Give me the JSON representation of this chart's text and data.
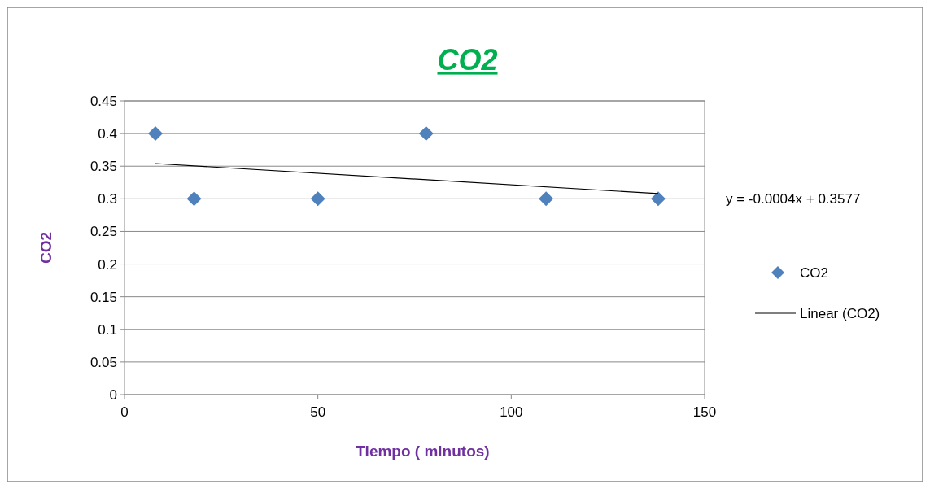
{
  "chart_data": {
    "type": "scatter",
    "title": "CO2",
    "xlabel": "Tiempo ( minutos)",
    "ylabel": "CO2",
    "xlim": [
      0,
      150
    ],
    "xticks": [
      0,
      50,
      100,
      150
    ],
    "ylim": [
      0,
      0.45
    ],
    "yticks": [
      0,
      0.05,
      0.1,
      0.15,
      0.2,
      0.25,
      0.3,
      0.35,
      0.4,
      0.45
    ],
    "grid": "y",
    "legend": "right",
    "annotations": [
      "y = -0.0004x + 0.3577"
    ],
    "series": [
      {
        "name": "CO2",
        "marker": "diamond",
        "color": "#4f81bd",
        "x": [
          8,
          18,
          50,
          78,
          109,
          138
        ],
        "values": [
          0.4,
          0.3,
          0.3,
          0.4,
          0.3,
          0.3
        ]
      },
      {
        "name": "Linear (CO2)",
        "type": "line",
        "marker": "none",
        "line_style": "solid",
        "color": "#000000",
        "x": [
          8,
          138
        ],
        "values": [
          0.354,
          0.308
        ]
      }
    ]
  }
}
